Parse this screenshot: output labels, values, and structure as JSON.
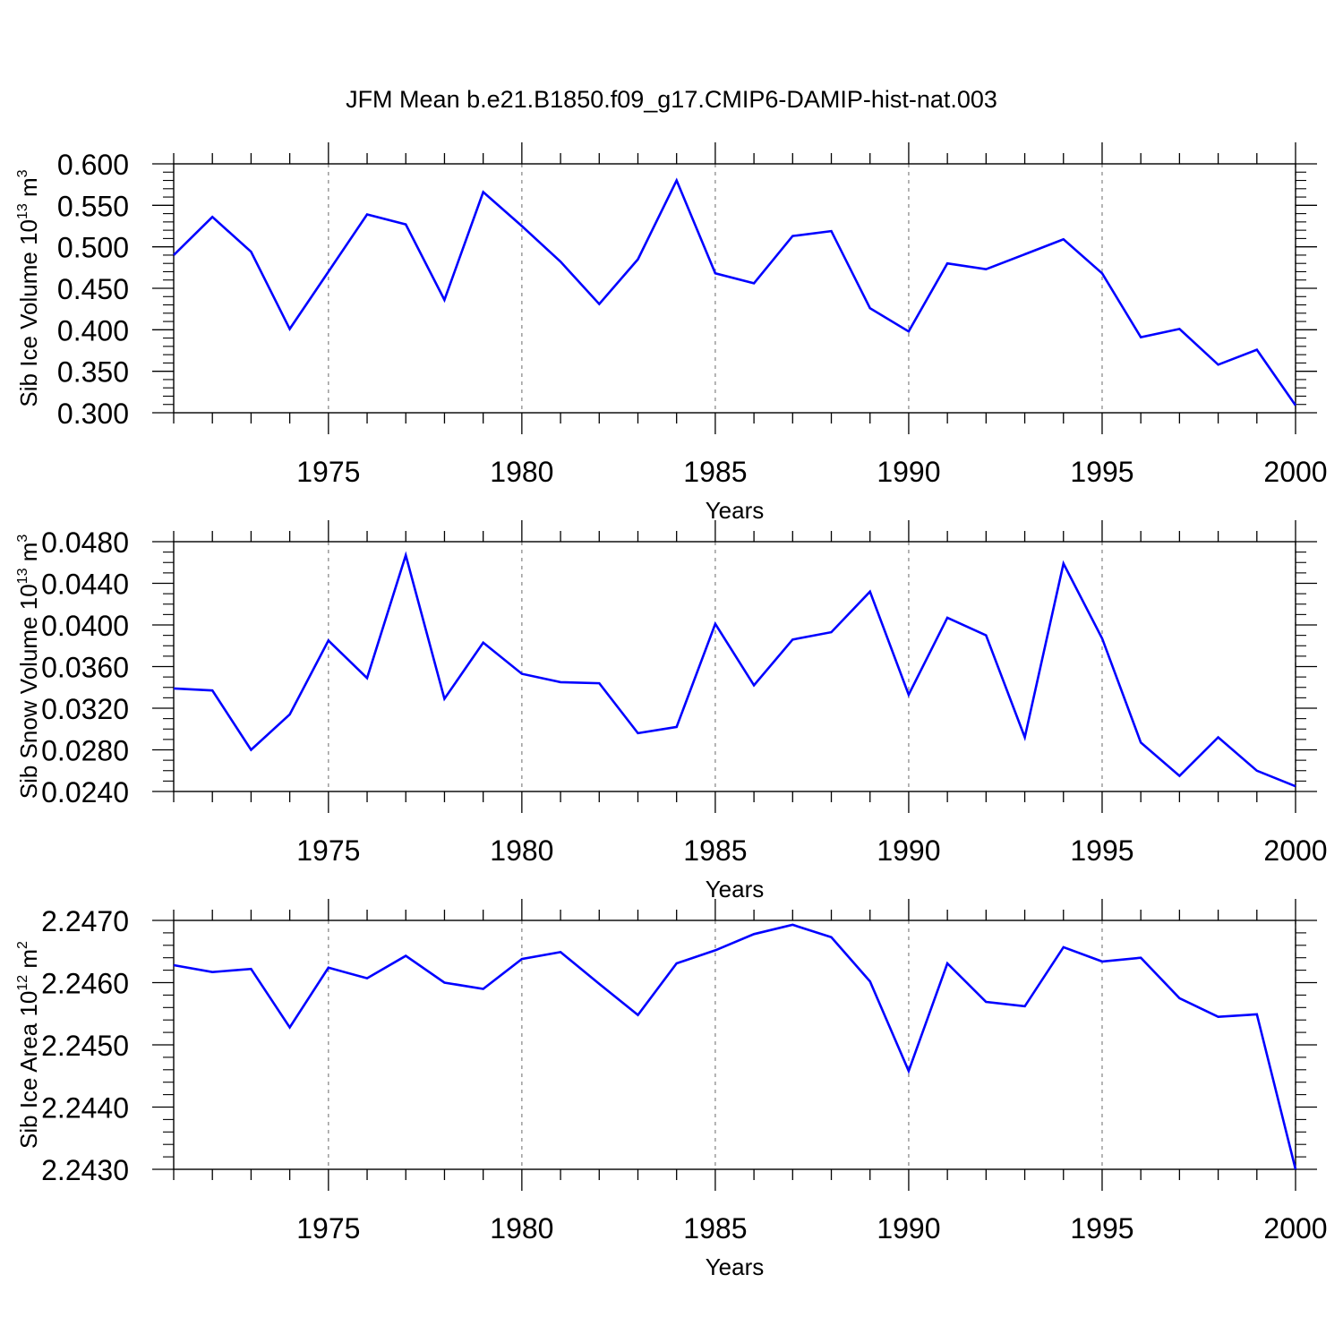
{
  "title": "JFM Mean b.e21.B1850.f09_g17.CMIP6-DAMIP-hist-nat.003",
  "line_color": "#0000ff",
  "chart_data": [
    {
      "type": "line",
      "ylabel_main": "Sib Ice Volume 10",
      "ylabel_exp": "13",
      "ylabel_unit": "m",
      "ylabel_unit_exp": "3",
      "xlabel": "Years",
      "xlim": [
        1971,
        2000
      ],
      "ylim": [
        0.3,
        0.6
      ],
      "grid": "vertical dashed at major ticks",
      "y_ticks": [
        "0.300",
        "0.350",
        "0.400",
        "0.450",
        "0.500",
        "0.550",
        "0.600"
      ],
      "x_ticks": [
        "1975",
        "1980",
        "1985",
        "1990",
        "1995",
        "2000"
      ],
      "series": [
        {
          "x": [
            1971,
            1972,
            1973,
            1974,
            1975,
            1976,
            1977,
            1978,
            1979,
            1980,
            1981,
            1982,
            1983,
            1984,
            1985,
            1986,
            1987,
            1988,
            1989,
            1990,
            1991,
            1992,
            1993,
            1994,
            1995,
            1996,
            1997,
            1998,
            1999,
            2000
          ],
          "values": [
            0.49,
            0.536,
            0.494,
            0.401,
            0.47,
            0.539,
            0.527,
            0.436,
            0.566,
            0.525,
            0.482,
            0.431,
            0.485,
            0.58,
            0.468,
            0.456,
            0.513,
            0.519,
            0.426,
            0.398,
            0.48,
            0.473,
            0.491,
            0.509,
            0.468,
            0.391,
            0.401,
            0.358,
            0.376,
            0.309
          ]
        }
      ]
    },
    {
      "type": "line",
      "ylabel_main": "Sib Snow Volume 10",
      "ylabel_exp": "13",
      "ylabel_unit": "m",
      "ylabel_unit_exp": "3",
      "xlabel": "Years",
      "xlim": [
        1971,
        2000
      ],
      "ylim": [
        0.024,
        0.048
      ],
      "grid": "vertical dashed at major ticks",
      "y_ticks": [
        "0.0240",
        "0.0280",
        "0.0320",
        "0.0360",
        "0.0400",
        "0.0440",
        "0.0480"
      ],
      "x_ticks": [
        "1975",
        "1980",
        "1985",
        "1990",
        "1995",
        "2000"
      ],
      "series": [
        {
          "x": [
            1971,
            1972,
            1973,
            1974,
            1975,
            1976,
            1977,
            1978,
            1979,
            1980,
            1981,
            1982,
            1983,
            1984,
            1985,
            1986,
            1987,
            1988,
            1989,
            1990,
            1991,
            1992,
            1993,
            1994,
            1995,
            1996,
            1997,
            1998,
            1999,
            2000
          ],
          "values": [
            0.0339,
            0.0337,
            0.028,
            0.0314,
            0.0385,
            0.0349,
            0.0467,
            0.0329,
            0.0383,
            0.0353,
            0.0345,
            0.0344,
            0.0296,
            0.0302,
            0.0401,
            0.0342,
            0.0386,
            0.0393,
            0.0432,
            0.0333,
            0.0407,
            0.039,
            0.0292,
            0.0459,
            0.0387,
            0.0287,
            0.0255,
            0.0292,
            0.026,
            0.0245
          ]
        }
      ]
    },
    {
      "type": "line",
      "ylabel_main": "Sib Ice Area 10",
      "ylabel_exp": "12",
      "ylabel_unit": "m",
      "ylabel_unit_exp": "2",
      "xlabel": "Years",
      "xlim": [
        1971,
        2000
      ],
      "ylim": [
        2.243,
        2.247
      ],
      "grid": "vertical dashed at major ticks",
      "y_ticks": [
        "2.2430",
        "2.2440",
        "2.2450",
        "2.2460",
        "2.2470"
      ],
      "x_ticks": [
        "1975",
        "1980",
        "1985",
        "1990",
        "1995",
        "2000"
      ],
      "series": [
        {
          "x": [
            1971,
            1972,
            1973,
            1974,
            1975,
            1976,
            1977,
            1978,
            1979,
            1980,
            1981,
            1982,
            1983,
            1984,
            1985,
            1986,
            1987,
            1988,
            1989,
            1990,
            1991,
            1992,
            1993,
            1994,
            1995,
            1996,
            1997,
            1998,
            1999,
            2000
          ],
          "values": [
            2.24628,
            2.24617,
            2.24622,
            2.24528,
            2.24624,
            2.24607,
            2.24643,
            2.246,
            2.2459,
            2.24638,
            2.24649,
            2.24598,
            2.24548,
            2.24631,
            2.24652,
            2.24678,
            2.24693,
            2.24673,
            2.24602,
            2.24458,
            2.24631,
            2.24569,
            2.24562,
            2.24657,
            2.24634,
            2.2464,
            2.24575,
            2.24545,
            2.24549,
            2.243
          ]
        }
      ]
    }
  ]
}
